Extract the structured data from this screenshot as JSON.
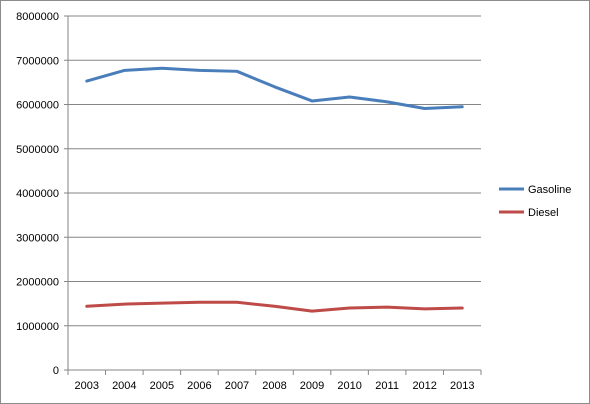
{
  "chart_data": {
    "type": "line",
    "categories": [
      "2003",
      "2004",
      "2005",
      "2006",
      "2007",
      "2008",
      "2009",
      "2010",
      "2011",
      "2012",
      "2013"
    ],
    "series": [
      {
        "name": "Gasoline",
        "color": "#4a7ebb",
        "values": [
          6530000,
          6770000,
          6820000,
          6770000,
          6750000,
          6400000,
          6080000,
          6170000,
          6060000,
          5910000,
          5950000
        ]
      },
      {
        "name": "Diesel",
        "color": "#be4b48",
        "values": [
          1440000,
          1490000,
          1510000,
          1530000,
          1530000,
          1440000,
          1330000,
          1400000,
          1420000,
          1380000,
          1400000
        ]
      }
    ],
    "y_ticks": [
      "0",
      "1000000",
      "2000000",
      "3000000",
      "4000000",
      "5000000",
      "6000000",
      "7000000",
      "8000000"
    ],
    "ylim": [
      0,
      8000000
    ],
    "grid": true,
    "legend_position": "right"
  }
}
